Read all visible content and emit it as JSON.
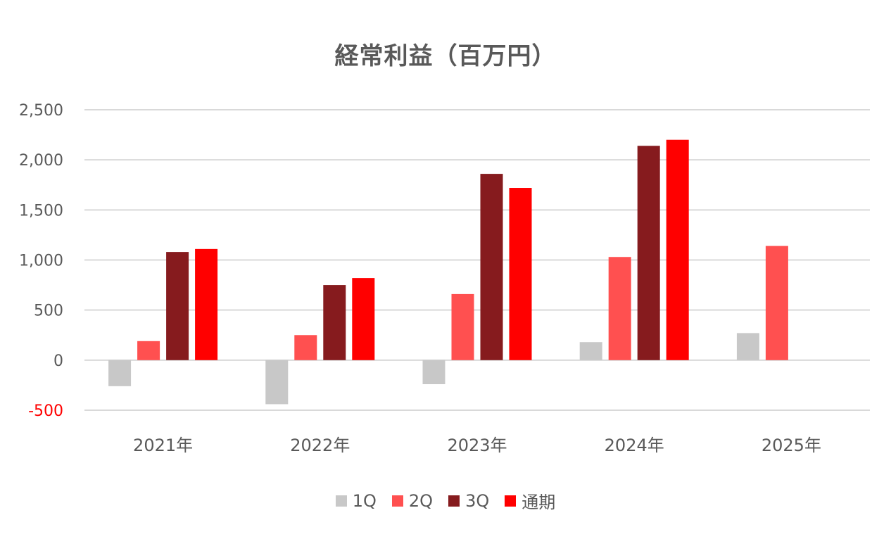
{
  "chart_data": {
    "type": "bar",
    "title": "経常利益（百万円）",
    "categories": [
      "2021年",
      "2022年",
      "2023年",
      "2024年",
      "2025年"
    ],
    "series": [
      {
        "name": "1Q",
        "color": "#c8c8c8",
        "values": [
          -260,
          -440,
          -240,
          180,
          270
        ]
      },
      {
        "name": "2Q",
        "color": "#ff5050",
        "values": [
          190,
          250,
          660,
          1030,
          1140
        ]
      },
      {
        "name": "3Q",
        "color": "#861b1e",
        "values": [
          1080,
          750,
          1860,
          2140,
          null
        ]
      },
      {
        "name": "通期",
        "color": "#ff0000",
        "values": [
          1110,
          820,
          1720,
          2200,
          null
        ]
      }
    ],
    "yticks": [
      "-500",
      "0",
      "500",
      "1,000",
      "1,500",
      "2,000",
      "2,500"
    ],
    "ylim": [
      -500,
      2500
    ],
    "grid": true,
    "legend_position": "bottom",
    "negative_tick_color": "#ff0000"
  }
}
